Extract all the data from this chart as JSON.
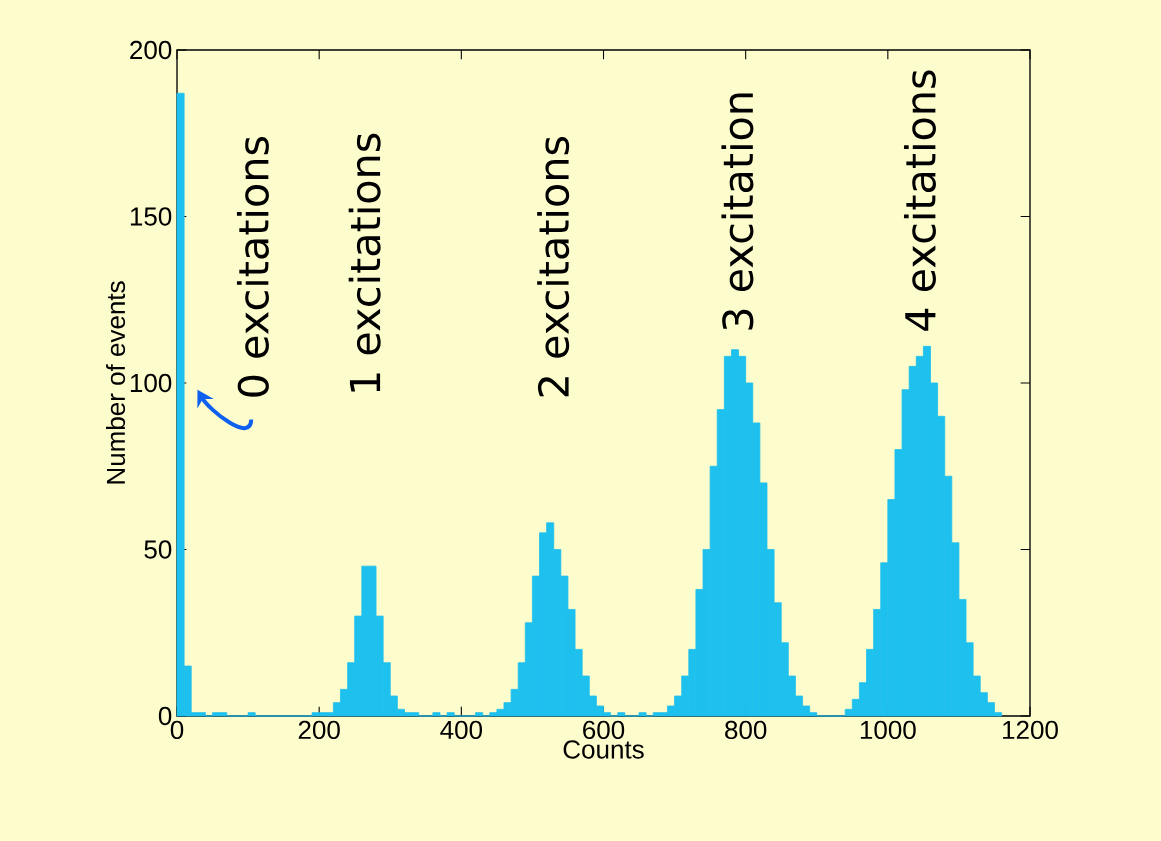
{
  "chart_data": {
    "type": "histogram",
    "xlabel": "Counts",
    "ylabel": "Number of events",
    "bins": [
      0,
      10,
      20,
      30,
      40,
      50,
      60,
      70,
      80,
      90,
      100,
      110,
      120,
      130,
      140,
      150,
      160,
      170,
      180,
      190,
      200,
      210,
      220,
      230,
      240,
      250,
      260,
      270,
      280,
      290,
      300,
      310,
      320,
      330,
      340,
      350,
      360,
      370,
      380,
      390,
      400,
      410,
      420,
      430,
      440,
      450,
      460,
      470,
      480,
      490,
      500,
      510,
      520,
      530,
      540,
      550,
      560,
      570,
      580,
      590,
      600,
      610,
      620,
      630,
      640,
      650,
      660,
      670,
      680,
      690,
      700,
      710,
      720,
      730,
      740,
      750,
      760,
      770,
      780,
      790,
      800,
      810,
      820,
      830,
      840,
      850,
      860,
      870,
      880,
      890,
      900,
      910,
      920,
      930,
      940,
      950,
      960,
      970,
      980,
      990,
      1000,
      1010,
      1020,
      1030,
      1040,
      1050,
      1060,
      1070,
      1080,
      1090,
      1100,
      1110,
      1120,
      1130,
      1140,
      1150,
      1160
    ],
    "values": [
      187,
      15,
      1,
      1,
      0,
      1,
      1,
      0,
      0,
      0,
      1,
      0,
      0,
      0,
      0,
      0,
      0,
      0,
      0,
      1,
      1,
      1,
      4,
      8,
      16,
      30,
      45,
      45,
      30,
      16,
      6,
      2,
      1,
      1,
      0,
      0,
      1,
      0,
      1,
      0,
      0,
      0,
      1,
      0,
      1,
      2,
      4,
      8,
      16,
      28,
      42,
      55,
      58,
      50,
      42,
      32,
      20,
      12,
      6,
      3,
      1,
      0,
      1,
      0,
      0,
      1,
      0,
      1,
      1,
      3,
      6,
      12,
      20,
      38,
      50,
      75,
      92,
      108,
      110,
      108,
      100,
      88,
      70,
      50,
      34,
      22,
      12,
      6,
      3,
      1,
      0,
      0,
      0,
      0,
      2,
      5,
      10,
      20,
      32,
      46,
      65,
      80,
      98,
      105,
      108,
      111,
      100,
      90,
      72,
      52,
      35,
      22,
      12,
      7,
      4,
      1
    ],
    "color": "#1ec0ee",
    "xlim": [
      0,
      1200
    ],
    "ylim": [
      0,
      200
    ],
    "xticks": [
      0,
      200,
      400,
      600,
      800,
      1000,
      1200
    ],
    "yticks": [
      0,
      50,
      100,
      150,
      200
    ],
    "grid": false,
    "annotations": [
      "0 excitations",
      "1 excitations",
      "2 excitations",
      "3 excitation",
      "4 excitations"
    ]
  }
}
